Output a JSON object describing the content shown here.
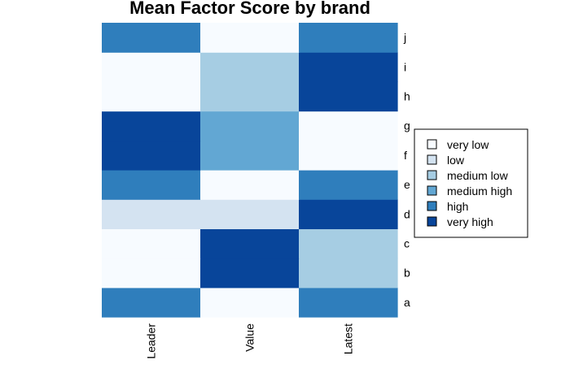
{
  "chart_data": {
    "type": "heatmap",
    "title": "Mean Factor Score by brand",
    "xlabel": "",
    "ylabel": "",
    "columns": [
      "Leader",
      "Value",
      "Latest"
    ],
    "rows": [
      "a",
      "b",
      "c",
      "d",
      "e",
      "f",
      "g",
      "h",
      "i",
      "j"
    ],
    "levels": [
      "very low",
      "low",
      "medium low",
      "medium high",
      "high",
      "very high"
    ],
    "level_colors": {
      "very low": "#F7FBFF",
      "low": "#D4E3F1",
      "medium low": "#A6CDE3",
      "medium high": "#62A7D3",
      "high": "#2F7EBC",
      "very high": "#08459A"
    },
    "cells": {
      "a": [
        "high",
        "very low",
        "high"
      ],
      "b": [
        "very low",
        "very high",
        "medium low"
      ],
      "c": [
        "very low",
        "very high",
        "medium low"
      ],
      "d": [
        "low",
        "low",
        "very high"
      ],
      "e": [
        "high",
        "very low",
        "high"
      ],
      "f": [
        "very high",
        "medium high",
        "very low"
      ],
      "g": [
        "very high",
        "medium high",
        "very low"
      ],
      "h": [
        "very low",
        "medium low",
        "very high"
      ],
      "i": [
        "very low",
        "medium low",
        "very high"
      ],
      "j": [
        "high",
        "very low",
        "high"
      ]
    },
    "grid": false,
    "legend_position": "right"
  }
}
